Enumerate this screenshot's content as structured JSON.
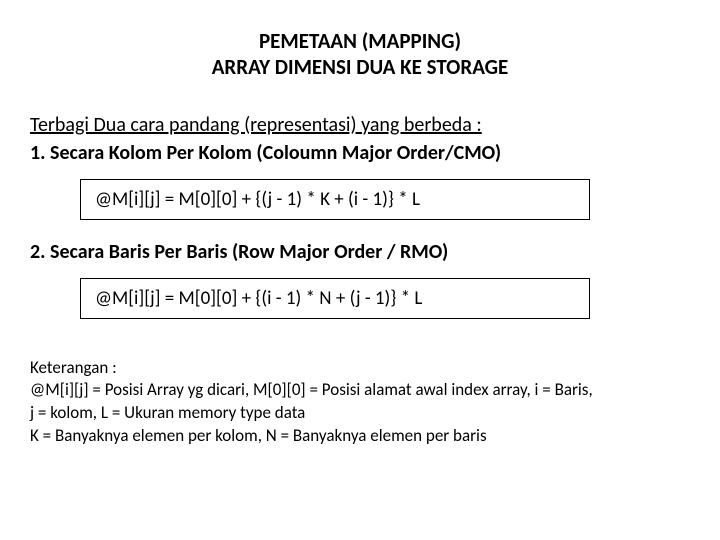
{
  "title": {
    "line1": "PEMETAAN (MAPPING)",
    "line2": "ARRAY DIMENSI DUA  KE STORAGE"
  },
  "subtitle": "Terbagi Dua cara pandang (representasi) yang berbeda :",
  "section1": {
    "heading": "1. Secara Kolom Per Kolom (Coloumn Major Order/CMO)",
    "formula": "@M[i][j] = M[0][0] + {(j - 1) * K + (i - 1)} * L"
  },
  "section2": {
    "heading": "2. Secara Baris Per Baris (Row Major Order / RMO)",
    "formula": "@M[i][j] = M[0][0] + {(i - 1) * N + (j - 1)} * L"
  },
  "keterangan": {
    "heading": "Keterangan :",
    "line1": "@M[i][j] = Posisi Array yg dicari, M[0][0] = Posisi alamat awal index array, i = Baris,",
    "line2": "j = kolom, L = Ukuran memory type data",
    "line3": "K = Banyaknya elemen per kolom, N = Banyaknya elemen per baris"
  },
  "colors": {
    "background": "#ffffff",
    "text": "#000000",
    "border": "#000000"
  },
  "fonts": {
    "family": "Calibri, Arial, sans-serif",
    "title_size": 21,
    "body_size": 20,
    "formula_size": 19,
    "note_size": 17
  }
}
